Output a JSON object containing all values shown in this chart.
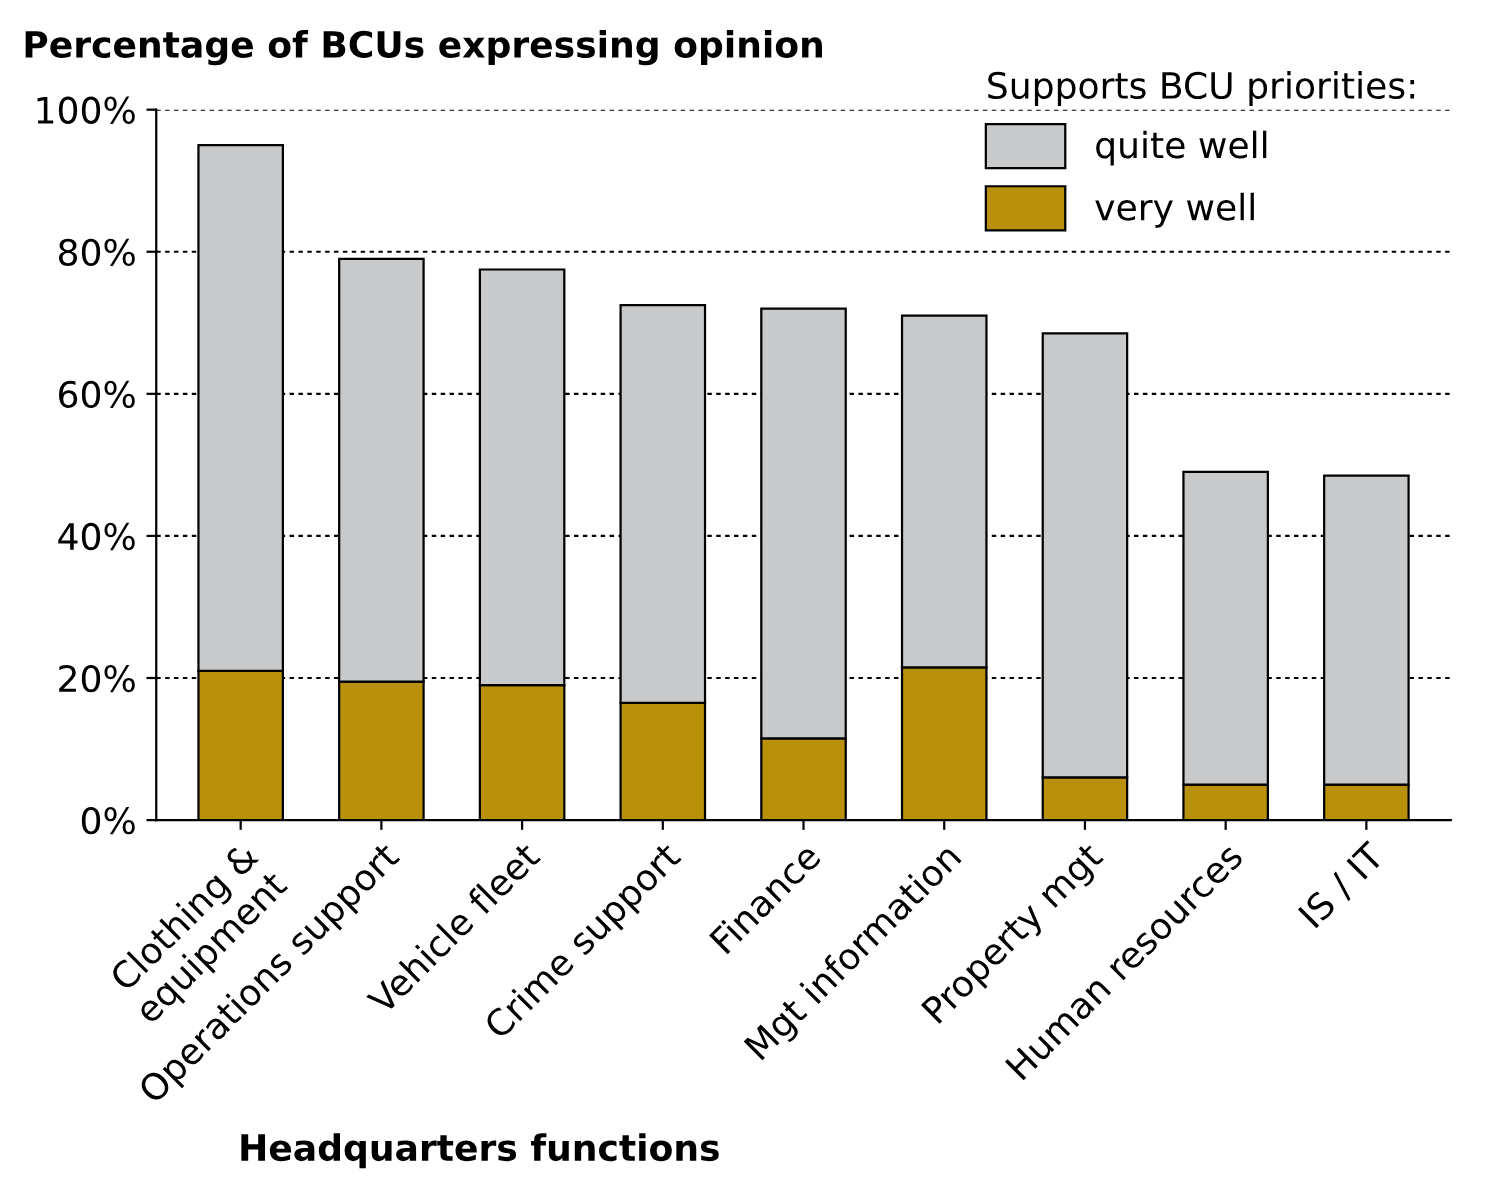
{
  "chart_data": {
    "type": "bar",
    "title": "Percentage of BCUs expressing opinion",
    "xlabel": "Headquarters functions",
    "legend_title": "Supports BCU priorities:",
    "categories": [
      "Clothing &\nequipment",
      "Operations support",
      "Vehicle fleet",
      "Crime support",
      "Finance",
      "Mgt information",
      "Property mgt",
      "Human resources",
      "IS / IT"
    ],
    "stacked": true,
    "series": [
      {
        "name": "very well",
        "color": "#b8900a",
        "values": [
          21,
          19.5,
          19,
          16.5,
          11.5,
          21.5,
          6,
          5,
          5
        ]
      },
      {
        "name": "quite well",
        "color": "#c8c9cb",
        "values": [
          74,
          59.5,
          58.5,
          56,
          60.5,
          49.5,
          62.5,
          44,
          43.5
        ]
      }
    ],
    "ylim": [
      0,
      100
    ],
    "yticks": [
      {
        "value": 0,
        "label": "0%"
      },
      {
        "value": 20,
        "label": "20%"
      },
      {
        "value": 40,
        "label": "40%"
      },
      {
        "value": 60,
        "label": "60%"
      },
      {
        "value": 80,
        "label": "80%"
      },
      {
        "value": 100,
        "label": "100%"
      }
    ],
    "grid": "y",
    "legend": "top right"
  }
}
